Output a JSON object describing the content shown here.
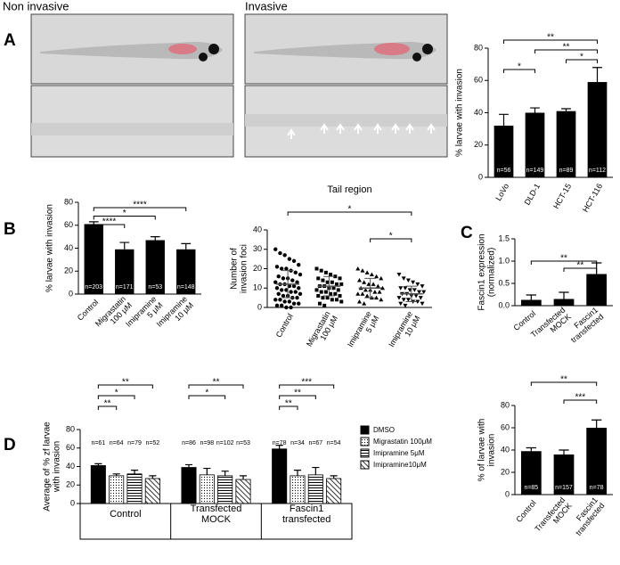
{
  "figure": {
    "panel_labels": [
      "A",
      "B",
      "C",
      "D"
    ],
    "image_labels": [
      "Non invasive",
      "Invasive"
    ]
  },
  "chart_data": [
    {
      "type": "bar",
      "ylabel": "% larvae with invasion",
      "categories": [
        "LoVo",
        "DLD-1",
        "HCT-15",
        "HCT-116"
      ],
      "values": [
        32,
        40,
        41,
        59
      ],
      "errors": [
        7,
        3,
        1.5,
        9
      ],
      "n_labels": [
        "n=56",
        "n=149",
        "n=89",
        "n=112"
      ],
      "color": "#000000",
      "ylim": [
        0,
        80
      ],
      "yticks": [
        0,
        20,
        40,
        60,
        80
      ],
      "significance": [
        {
          "pair": [
            "LoVo",
            "HCT-116"
          ],
          "label": "**"
        },
        {
          "pair": [
            "DLD-1",
            "HCT-116"
          ],
          "label": "**"
        },
        {
          "pair": [
            "HCT-15",
            "HCT-116"
          ],
          "label": "*"
        },
        {
          "pair": [
            "LoVo",
            "DLD-1"
          ],
          "label": "*"
        }
      ]
    },
    {
      "type": "bar",
      "ylabel": "% larvae with invasion",
      "categories": [
        "Control",
        "Migrastatin\n100 μM",
        "Imipramine\n5 μM",
        "Imipramine\n10 μM"
      ],
      "values": [
        61,
        39,
        47,
        39
      ],
      "errors": [
        2,
        6,
        3,
        5
      ],
      "n_labels": [
        "n=203",
        "n=171",
        "n=53",
        "n=148"
      ],
      "color": "#000000",
      "ylim": [
        0,
        80
      ],
      "yticks": [
        0,
        20,
        40,
        60,
        80
      ],
      "significance": [
        {
          "pair": [
            "Control",
            "Imipramine\n10 μM"
          ],
          "label": "****"
        },
        {
          "pair": [
            "Control",
            "Imipramine\n5 μM"
          ],
          "label": "*"
        },
        {
          "pair": [
            "Control",
            "Migrastatin\n100 μM"
          ],
          "label": "****"
        }
      ]
    },
    {
      "type": "scatter",
      "title": "Tail region",
      "ylabel": "Number of\ninvasion foci",
      "categories": [
        "Control",
        "Migrastatin\n100 μM",
        "Imipramine\n5 μM",
        "Imipramine\n10 μM"
      ],
      "markers": [
        "circle",
        "square",
        "triangle",
        "triangle-down"
      ],
      "color": "#000000",
      "values": [
        [
          30,
          28,
          27,
          25,
          24,
          22,
          21,
          20,
          20,
          19,
          18,
          17,
          16,
          15,
          15,
          14,
          13,
          13,
          12,
          12,
          11,
          11,
          10,
          10,
          9,
          9,
          8,
          8,
          7,
          7,
          6,
          6,
          5,
          5,
          4,
          4,
          3,
          3,
          2,
          2,
          1,
          1,
          0,
          0
        ],
        [
          20,
          19,
          18,
          17,
          16,
          15,
          15,
          14,
          13,
          13,
          12,
          12,
          11,
          11,
          10,
          10,
          9,
          9,
          8,
          8,
          7,
          7,
          6,
          6,
          5,
          5,
          4,
          4,
          3,
          2,
          1
        ],
        [
          20,
          19,
          18,
          17,
          16,
          15,
          14,
          13,
          12,
          12,
          11,
          10,
          10,
          9,
          9,
          8,
          8,
          7,
          7,
          6,
          5,
          5,
          4,
          3,
          2
        ],
        [
          17,
          15,
          14,
          13,
          12,
          11,
          10,
          10,
          9,
          9,
          8,
          8,
          7,
          7,
          6,
          6,
          5,
          5,
          4,
          4,
          3,
          3,
          2,
          2,
          1
        ]
      ],
      "means": [
        12,
        11,
        10,
        7
      ],
      "sds": [
        7,
        5,
        5,
        4
      ],
      "ylim": [
        0,
        40
      ],
      "yticks": [
        0,
        10,
        20,
        30,
        40
      ],
      "significance": [
        {
          "pair": [
            "Control",
            "Imipramine\n10 μM"
          ],
          "label": "*"
        },
        {
          "pair": [
            "Imipramine\n5 μM",
            "Imipramine\n10 μM"
          ],
          "label": "*"
        }
      ]
    },
    {
      "type": "bar",
      "ylabel": "Fascin1 expression\n(normalized)",
      "categories": [
        "Control",
        "Transfected\nMOCK",
        "Fascin1\ntransfected"
      ],
      "values": [
        0.13,
        0.15,
        0.71
      ],
      "errors": [
        0.11,
        0.15,
        0.25
      ],
      "color": "#000000",
      "ylim": [
        0,
        1.5
      ],
      "yticks": [
        {
          "value": 0,
          "label": "0.0"
        },
        0.5,
        {
          "value": 1,
          "label": "1.0"
        },
        1.5
      ],
      "significance": [
        {
          "pair": [
            "Control",
            "Fascin1\ntransfected"
          ],
          "label": "**"
        },
        {
          "pair": [
            "Transfected\nMOCK",
            "Fascin1\ntransfected"
          ],
          "label": "**"
        }
      ]
    },
    {
      "type": "grouped_bar",
      "ylabel": "Average of % zf larvae\nwith invasion",
      "categories": [
        "Control",
        "Transfected\nMOCK",
        "Fascin1\ntransfected"
      ],
      "series": [
        {
          "name": "DMSO",
          "color": "#000000",
          "pattern": "solid",
          "values": [
            41,
            39,
            59
          ],
          "errors": [
            2,
            3,
            4
          ],
          "n_labels": [
            "n=61",
            "n=86",
            "n=78"
          ]
        },
        {
          "name": "Migrastatin 100μM",
          "color": "#000000",
          "pattern": "dots",
          "values": [
            30,
            31,
            30
          ],
          "errors": [
            2,
            7,
            6
          ],
          "n_labels": [
            "n=64",
            "n=98",
            "n=34"
          ]
        },
        {
          "name": "Imipramine 5μM",
          "color": "#000000",
          "pattern": "hlines",
          "values": [
            32,
            30,
            31
          ],
          "errors": [
            4,
            5,
            8
          ],
          "n_labels": [
            "n=79",
            "n=102",
            "n=67"
          ]
        },
        {
          "name": "Imipramine10μM",
          "color": "#000000",
          "pattern": "dlines",
          "values": [
            27,
            26,
            27
          ],
          "errors": [
            3,
            4,
            3
          ],
          "n_labels": [
            "n=52",
            "n=53",
            "n=54"
          ]
        }
      ],
      "ylim": [
        0,
        80
      ],
      "yticks": [
        0,
        20,
        40,
        60,
        80
      ],
      "significance": [
        {
          "group": "Control",
          "pair": [
            "DMSO",
            "Imipramine10μM"
          ],
          "label": "**"
        },
        {
          "group": "Control",
          "pair": [
            "DMSO",
            "Imipramine 5μM"
          ],
          "label": "*"
        },
        {
          "group": "Control",
          "pair": [
            "DMSO",
            "Migrastatin 100μM"
          ],
          "label": "**"
        },
        {
          "group": "Transfected\nMOCK",
          "pair": [
            "DMSO",
            "Imipramine10μM"
          ],
          "label": "**"
        },
        {
          "group": "Transfected\nMOCK",
          "pair": [
            "DMSO",
            "Imipramine 5μM"
          ],
          "label": "*"
        },
        {
          "group": "Fascin1\ntransfected",
          "pair": [
            "DMSO",
            "Imipramine10μM"
          ],
          "label": "***"
        },
        {
          "group": "Fascin1\ntransfected",
          "pair": [
            "DMSO",
            "Imipramine 5μM"
          ],
          "label": "**"
        },
        {
          "group": "Fascin1\ntransfected",
          "pair": [
            "DMSO",
            "Migrastatin 100μM"
          ],
          "label": "**"
        }
      ]
    },
    {
      "type": "bar",
      "ylabel": "% of larvae with\ninvasion",
      "categories": [
        "Control",
        "Transfected\nMOCK",
        "Fascin1\ntransfected"
      ],
      "values": [
        39,
        36,
        60
      ],
      "errors": [
        3,
        4,
        7
      ],
      "n_labels": [
        "n=85",
        "n=157",
        "n=78"
      ],
      "color": "#000000",
      "ylim": [
        0,
        80
      ],
      "yticks": [
        0,
        20,
        40,
        60,
        80
      ],
      "significance": [
        {
          "pair": [
            "Control",
            "Fascin1\ntransfected"
          ],
          "label": "**"
        },
        {
          "pair": [
            "Transfected\nMOCK",
            "Fascin1\ntransfected"
          ],
          "label": "***"
        }
      ]
    }
  ]
}
